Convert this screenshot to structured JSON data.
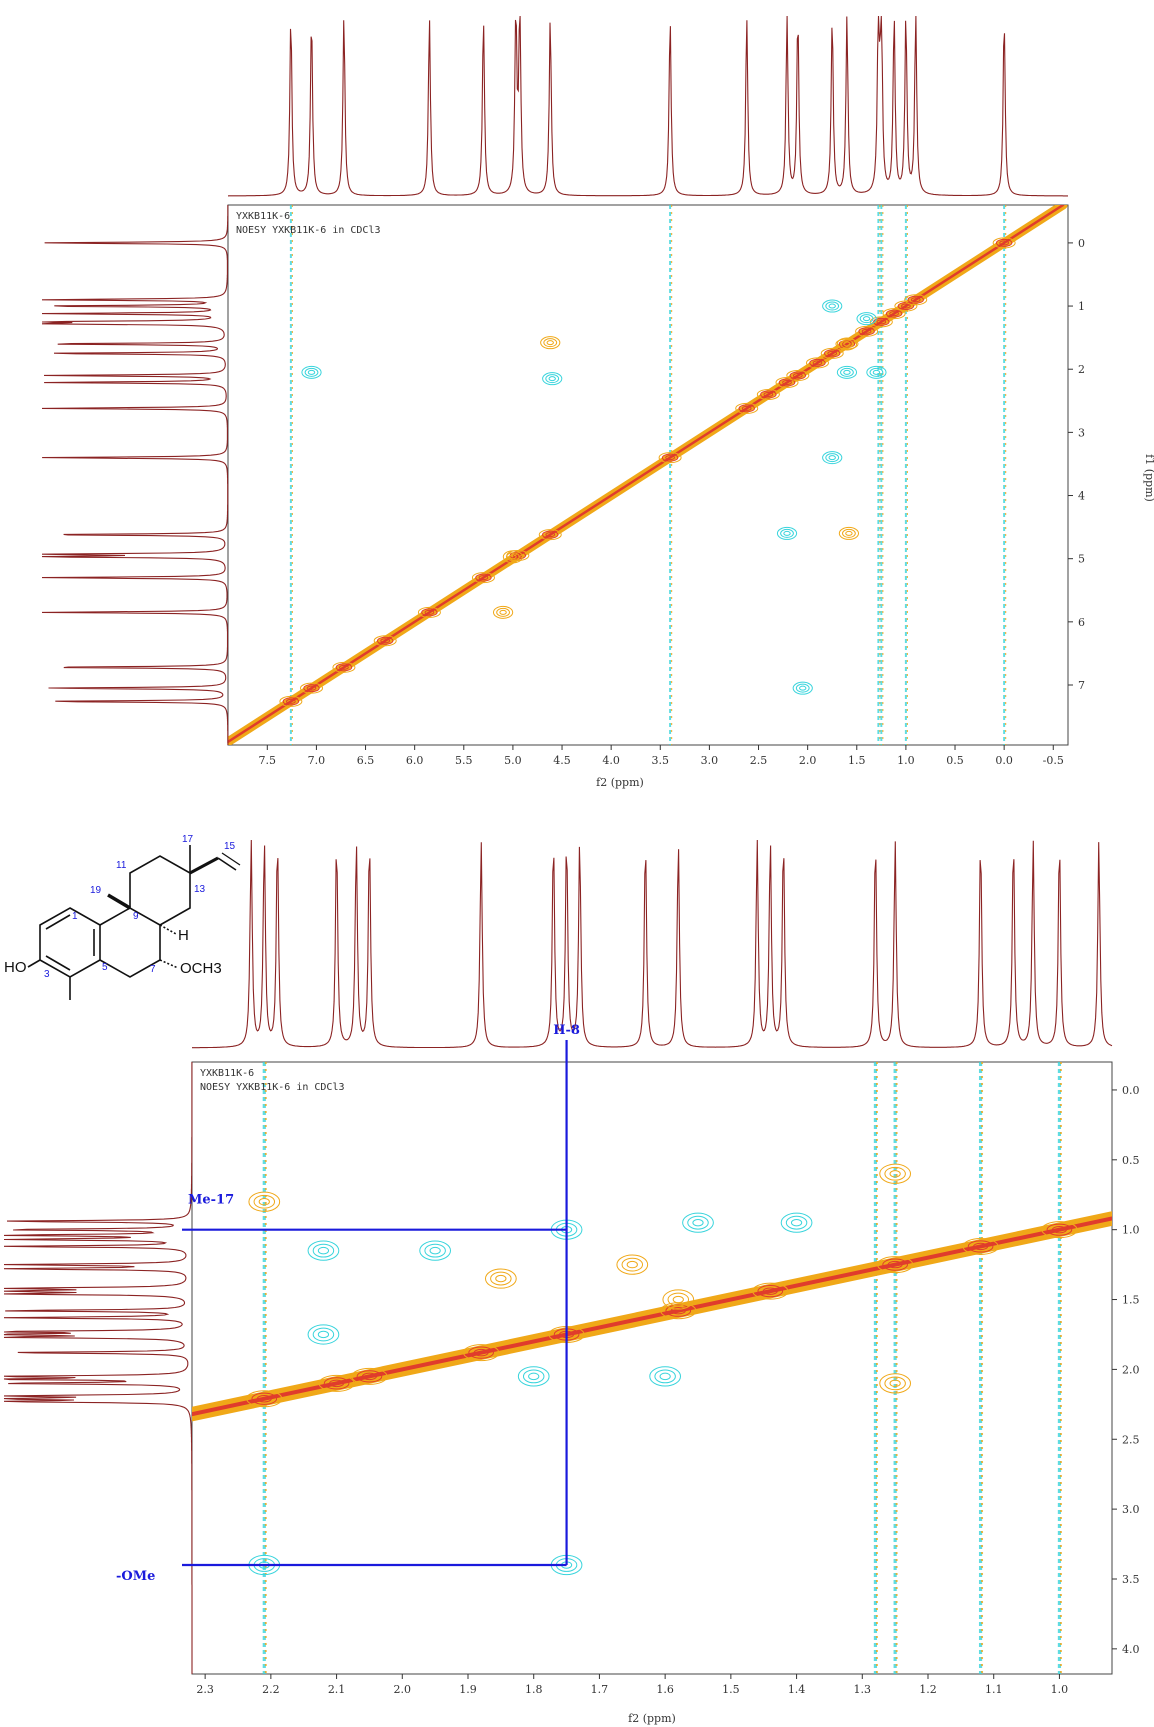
{
  "colors": {
    "spectrum": "#8b2323",
    "positive_contour": "#f0a818",
    "positive_core": "#e03c2c",
    "negative_contour": "#38d4dc",
    "annotation": "#1a1adc",
    "axis": "#333333"
  },
  "structure": {
    "atom_labels": [
      "17",
      "15",
      "11",
      "13",
      "19",
      "9",
      "1",
      "3",
      "5",
      "7"
    ],
    "groups": {
      "hydroxyl": "HO",
      "hydrogen": "H",
      "methoxy": "OCH3"
    }
  },
  "chart_data": [
    {
      "type": "heatmap",
      "panel": "full NOESY spectrum",
      "header": [
        "YXKB11K-6",
        "NOESY YXKB11K-6 in CDCl3"
      ],
      "xlabel": "f2 (ppm)",
      "ylabel": "f1 (ppm)",
      "xlim": [
        7.9,
        -0.65
      ],
      "ylim": [
        -0.6,
        7.95
      ],
      "x_ticks": [
        "7.5",
        "7.0",
        "6.5",
        "6.0",
        "5.5",
        "5.0",
        "4.5",
        "4.0",
        "3.5",
        "3.0",
        "2.5",
        "2.0",
        "1.5",
        "1.0",
        "0.5",
        "0.0",
        "-0.5"
      ],
      "y_ticks": [
        "0",
        "1",
        "2",
        "3",
        "4",
        "5",
        "6",
        "7"
      ],
      "proton_peaks_ppm": [
        7.26,
        7.05,
        6.72,
        5.85,
        5.3,
        4.97,
        4.93,
        4.62,
        3.4,
        2.62,
        2.21,
        2.1,
        1.75,
        1.6,
        1.28,
        1.25,
        1.12,
        1.0,
        0.9,
        0.0
      ],
      "diagonal_peaks_ppm": [
        7.26,
        7.05,
        6.72,
        6.3,
        5.85,
        5.3,
        4.95,
        4.62,
        3.4,
        2.62,
        2.4,
        2.21,
        2.1,
        1.9,
        1.75,
        1.6,
        1.4,
        1.25,
        1.12,
        1.0,
        0.9,
        0.0
      ],
      "positive_cross_peaks": [
        {
          "f2": 4.62,
          "f1": 1.58
        },
        {
          "f2": 1.58,
          "f1": 4.6
        },
        {
          "f2": 1.6,
          "f1": 1.6
        },
        {
          "f2": 5.0,
          "f1": 4.97
        },
        {
          "f2": 5.1,
          "f1": 5.85
        }
      ],
      "negative_cross_peaks": [
        {
          "f2": 7.05,
          "f1": 2.05
        },
        {
          "f2": 4.6,
          "f1": 2.15
        },
        {
          "f2": 1.75,
          "f1": 3.4
        },
        {
          "f2": 2.21,
          "f1": 4.6
        },
        {
          "f2": 2.05,
          "f1": 7.05
        },
        {
          "f2": 1.75,
          "f1": 1.0
        },
        {
          "f2": 1.4,
          "f1": 1.2
        },
        {
          "f2": 1.6,
          "f1": 2.05
        },
        {
          "f2": 1.3,
          "f1": 2.05
        }
      ],
      "t1_noise_lines_ppm": [
        7.26,
        3.4,
        1.28,
        1.25,
        1.0,
        0.0
      ]
    },
    {
      "type": "heatmap",
      "panel": "expanded NOESY region",
      "header": [
        "YXKB11K-6",
        "NOESY YXKB11K-6 in CDCl3"
      ],
      "xlabel": "f2 (ppm)",
      "xlim": [
        2.32,
        0.92
      ],
      "ylim": [
        -0.2,
        4.18
      ],
      "x_ticks": [
        "2.3",
        "2.2",
        "2.1",
        "2.0",
        "1.9",
        "1.8",
        "1.7",
        "1.6",
        "1.5",
        "1.4",
        "1.3",
        "1.2",
        "1.1",
        "1.0"
      ],
      "y_ticks": [
        "0.0",
        "0.5",
        "1.0",
        "1.5",
        "2.0",
        "2.5",
        "3.0",
        "3.5",
        "4.0"
      ],
      "proton_peaks_ppm": [
        2.23,
        2.21,
        2.19,
        2.1,
        2.07,
        2.05,
        1.88,
        1.77,
        1.75,
        1.73,
        1.63,
        1.58,
        1.46,
        1.44,
        1.42,
        1.28,
        1.25,
        1.12,
        1.07,
        1.04,
        1.0,
        0.94
      ],
      "diagonal_peaks_ppm": [
        2.21,
        2.1,
        2.05,
        1.88,
        1.75,
        1.58,
        1.44,
        1.25,
        1.12,
        1.0
      ],
      "annotations": [
        {
          "label": "H-8",
          "ppm": 1.75,
          "axis": "f2"
        },
        {
          "label": "Me-17",
          "ppm": 1.0,
          "axis": "f1"
        },
        {
          "label": "-OMe",
          "ppm": 3.4,
          "axis": "f1"
        }
      ],
      "correlations": [
        {
          "from": "H-8",
          "to": "Me-17",
          "f2": 1.75,
          "f1": 1.0
        },
        {
          "from": "H-8",
          "to": "-OMe",
          "f2": 1.75,
          "f1": 3.4
        }
      ],
      "positive_cross_peaks": [
        {
          "f2": 1.58,
          "f1": 1.5
        },
        {
          "f2": 1.85,
          "f1": 1.35
        },
        {
          "f2": 1.65,
          "f1": 1.25
        },
        {
          "f2": 1.25,
          "f1": 0.6
        },
        {
          "f2": 2.21,
          "f1": 0.8
        },
        {
          "f2": 1.25,
          "f1": 2.1
        }
      ],
      "negative_cross_peaks": [
        {
          "f2": 2.12,
          "f1": 1.15
        },
        {
          "f2": 2.12,
          "f1": 1.75
        },
        {
          "f2": 1.8,
          "f1": 2.05
        },
        {
          "f2": 1.6,
          "f1": 2.05
        },
        {
          "f2": 1.55,
          "f1": 0.95
        },
        {
          "f2": 1.4,
          "f1": 0.95
        },
        {
          "f2": 1.95,
          "f1": 1.15
        },
        {
          "f2": 1.75,
          "f1": 3.4
        },
        {
          "f2": 2.21,
          "f1": 3.4
        },
        {
          "f2": 1.75,
          "f1": 1.0
        }
      ],
      "t1_noise_lines_ppm": [
        2.21,
        1.28,
        1.25,
        1.12,
        1.0
      ]
    }
  ]
}
